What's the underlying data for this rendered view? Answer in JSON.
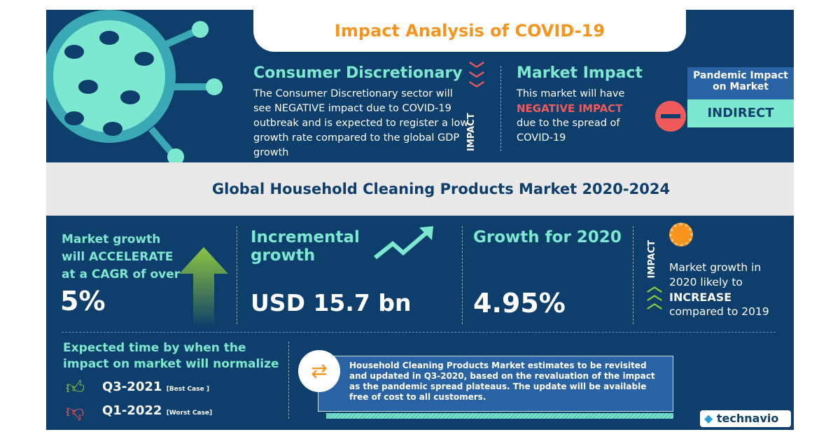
{
  "header": {
    "title": "Impact Analysis of COVID-19"
  },
  "consumer": {
    "heading": "Consumer Discretionary",
    "text": "The Consumer Discretionary sector will see NEGATIVE impact due to COVID-19 outbreak and is expected to register a low growth rate compared to the global GDP growth"
  },
  "impact_label": "IMPACT",
  "market_impact": {
    "heading": "Market Impact",
    "line1": "This market will have",
    "highlight": "NEGATIVE IMPACT",
    "line2": "due to the spread of COVID-19"
  },
  "pandemic": {
    "label": "Pandemic Impact on Market",
    "value": "INDIRECT"
  },
  "main_title": "Global Household Cleaning Products Market 2020-2024",
  "growth": {
    "text": "Market growth will ACCELERATE at a CAGR of over",
    "value": "5%"
  },
  "incremental": {
    "label": "Incremental growth",
    "value": "USD 15.7 bn"
  },
  "growth2020": {
    "label": "Growth for 2020",
    "value": "4.95%"
  },
  "impact2020": {
    "label": "IMPACT",
    "line1": "Market growth in 2020 likely to",
    "highlight": "INCREASE",
    "line2": "compared to 2019"
  },
  "normalize": {
    "heading": "Expected time by when the impact on market will normalize",
    "best": "Q3-2021",
    "best_tag": "[Best Case ]",
    "worst": "Q1-2022",
    "worst_tag": "[Worst Case]"
  },
  "note": "Household Cleaning Products Market estimates to be revisited and updated in Q3-2020, based on the revaluation of the impact as the pandemic spread plateaus. The update will be available free of cost to all customers.",
  "brand": "technavio",
  "colors": {
    "navy": "#0e3e6b",
    "teal": "#7de8d0",
    "orange": "#f7941d",
    "red": "#f05a5a",
    "green": "#8dc63f"
  }
}
